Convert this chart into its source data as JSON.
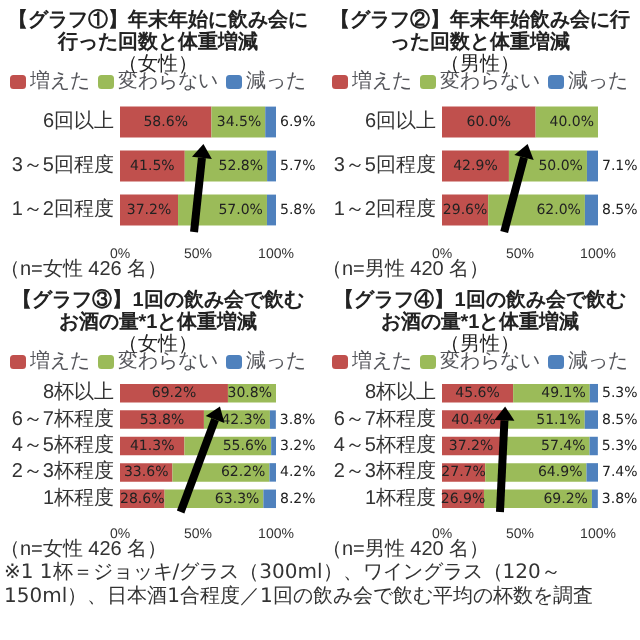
{
  "chart_data": [
    {
      "type": "bar",
      "orientation": "horizontal",
      "stacked": true,
      "title": "【グラフ①】年末年始に飲み会に行った回数と体重増減",
      "subtitle": "（女性）",
      "categories": [
        "6回以上",
        "3～5回程度",
        "1～2回程度"
      ],
      "series": [
        {
          "name": "増えた",
          "color": "#c0504d",
          "values": [
            58.6,
            41.5,
            37.2
          ],
          "value_labels": [
            "58.6%",
            "41.5%",
            "37.2%"
          ]
        },
        {
          "name": "変わらない",
          "color": "#9bbb59",
          "values": [
            34.5,
            52.8,
            57.0
          ],
          "value_labels": [
            "34.5%",
            "52.8%",
            "57.0%"
          ]
        },
        {
          "name": "減った",
          "color": "#4f81bd",
          "values": [
            6.9,
            5.7,
            5.8
          ],
          "value_labels": [
            "6.9%",
            "5.7%",
            "5.8%"
          ]
        }
      ],
      "xlim": [
        0,
        100
      ],
      "xticks": [
        {
          "value": 0,
          "label": "0%"
        },
        {
          "value": 50,
          "label": "50%"
        },
        {
          "value": 100,
          "label": "100%"
        }
      ],
      "legend": "top",
      "annotations": [
        "（n=女性 426 名）"
      ]
    },
    {
      "type": "bar",
      "orientation": "horizontal",
      "stacked": true,
      "title": "【グラフ②】年末年始飲み会に行った回数と体重増減",
      "subtitle": "（男性）",
      "categories": [
        "6回以上",
        "3～5回程度",
        "1～2回程度"
      ],
      "series": [
        {
          "name": "増えた",
          "color": "#c0504d",
          "values": [
            60.0,
            42.9,
            29.6
          ],
          "value_labels": [
            "60.0%",
            "42.9%",
            "29.6%"
          ]
        },
        {
          "name": "変わらない",
          "color": "#9bbb59",
          "values": [
            40.0,
            50.0,
            62.0
          ],
          "value_labels": [
            "40.0%",
            "50.0%",
            "62.0%"
          ]
        },
        {
          "name": "減った",
          "color": "#4f81bd",
          "values": [
            0,
            7.1,
            8.5
          ],
          "value_labels": [
            null,
            "7.1%",
            "8.5%"
          ]
        }
      ],
      "xlim": [
        0,
        100
      ],
      "xticks": [
        {
          "value": 0,
          "label": "0%"
        },
        {
          "value": 50,
          "label": "50%"
        },
        {
          "value": 100,
          "label": "100%"
        }
      ],
      "legend": "top",
      "annotations": [
        "（n=男性 420 名）"
      ]
    },
    {
      "type": "bar",
      "orientation": "horizontal",
      "stacked": true,
      "title": "【グラフ③】1回の飲み会で飲むお酒の量*1と体重増減",
      "subtitle": "（女性）",
      "categories": [
        "8杯以上",
        "6～7杯程度",
        "4～5杯程度",
        "2～3杯程度",
        "1杯程度"
      ],
      "series": [
        {
          "name": "増えた",
          "color": "#c0504d",
          "values": [
            69.2,
            53.8,
            41.3,
            33.6,
            28.6
          ],
          "value_labels": [
            "69.2%",
            "53.8%",
            "41.3%",
            "33.6%",
            "28.6%"
          ]
        },
        {
          "name": "変わらない",
          "color": "#9bbb59",
          "values": [
            30.8,
            42.3,
            55.6,
            62.2,
            63.3
          ],
          "value_labels": [
            "30.8%",
            "42.3%",
            "55.6%",
            "62.2%",
            "63.3%"
          ]
        },
        {
          "name": "減った",
          "color": "#4f81bd",
          "values": [
            0,
            3.8,
            3.2,
            4.2,
            8.2
          ],
          "value_labels": [
            null,
            "3.8%",
            "3.2%",
            "4.2%",
            "8.2%"
          ]
        }
      ],
      "xlim": [
        0,
        100
      ],
      "xticks": [
        {
          "value": 0,
          "label": "0%"
        },
        {
          "value": 50,
          "label": "50%"
        },
        {
          "value": 100,
          "label": "100%"
        }
      ],
      "legend": "top",
      "annotations": [
        "（n=女性 426 名）"
      ]
    },
    {
      "type": "bar",
      "orientation": "horizontal",
      "stacked": true,
      "title": "【グラフ④】1回の飲み会で飲むお酒の量*1と体重増減",
      "subtitle": "（男性）",
      "categories": [
        "8杯以上",
        "6～7杯程度",
        "4～5杯程度",
        "2～3杯程度",
        "1杯程度"
      ],
      "series": [
        {
          "name": "増えた",
          "color": "#c0504d",
          "values": [
            45.6,
            40.4,
            37.2,
            27.7,
            26.9
          ],
          "value_labels": [
            "45.6%",
            "40.4%",
            "37.2%",
            "27.7%",
            "26.9%"
          ]
        },
        {
          "name": "変わらない",
          "color": "#9bbb59",
          "values": [
            49.1,
            51.1,
            57.4,
            64.9,
            69.2
          ],
          "value_labels": [
            "49.1%",
            "51.1%",
            "57.4%",
            "64.9%",
            "69.2%"
          ]
        },
        {
          "name": "減った",
          "color": "#4f81bd",
          "values": [
            5.3,
            8.5,
            5.3,
            7.4,
            3.8
          ],
          "value_labels": [
            "5.3%",
            "8.5%",
            "5.3%",
            "7.4%",
            "3.8%"
          ]
        }
      ],
      "xlim": [
        0,
        100
      ],
      "xticks": [
        {
          "value": 0,
          "label": "0%"
        },
        {
          "value": 50,
          "label": "50%"
        },
        {
          "value": 100,
          "label": "100%"
        }
      ],
      "legend": "top",
      "annotations": [
        "（n=男性 420 名）",
        "※1 1杯＝ジョッキ/グラス（300ml）、ワイングラス（120～150ml）、日本酒1合程度／1回の飲み会で飲む平均の杯数を調査"
      ]
    }
  ]
}
